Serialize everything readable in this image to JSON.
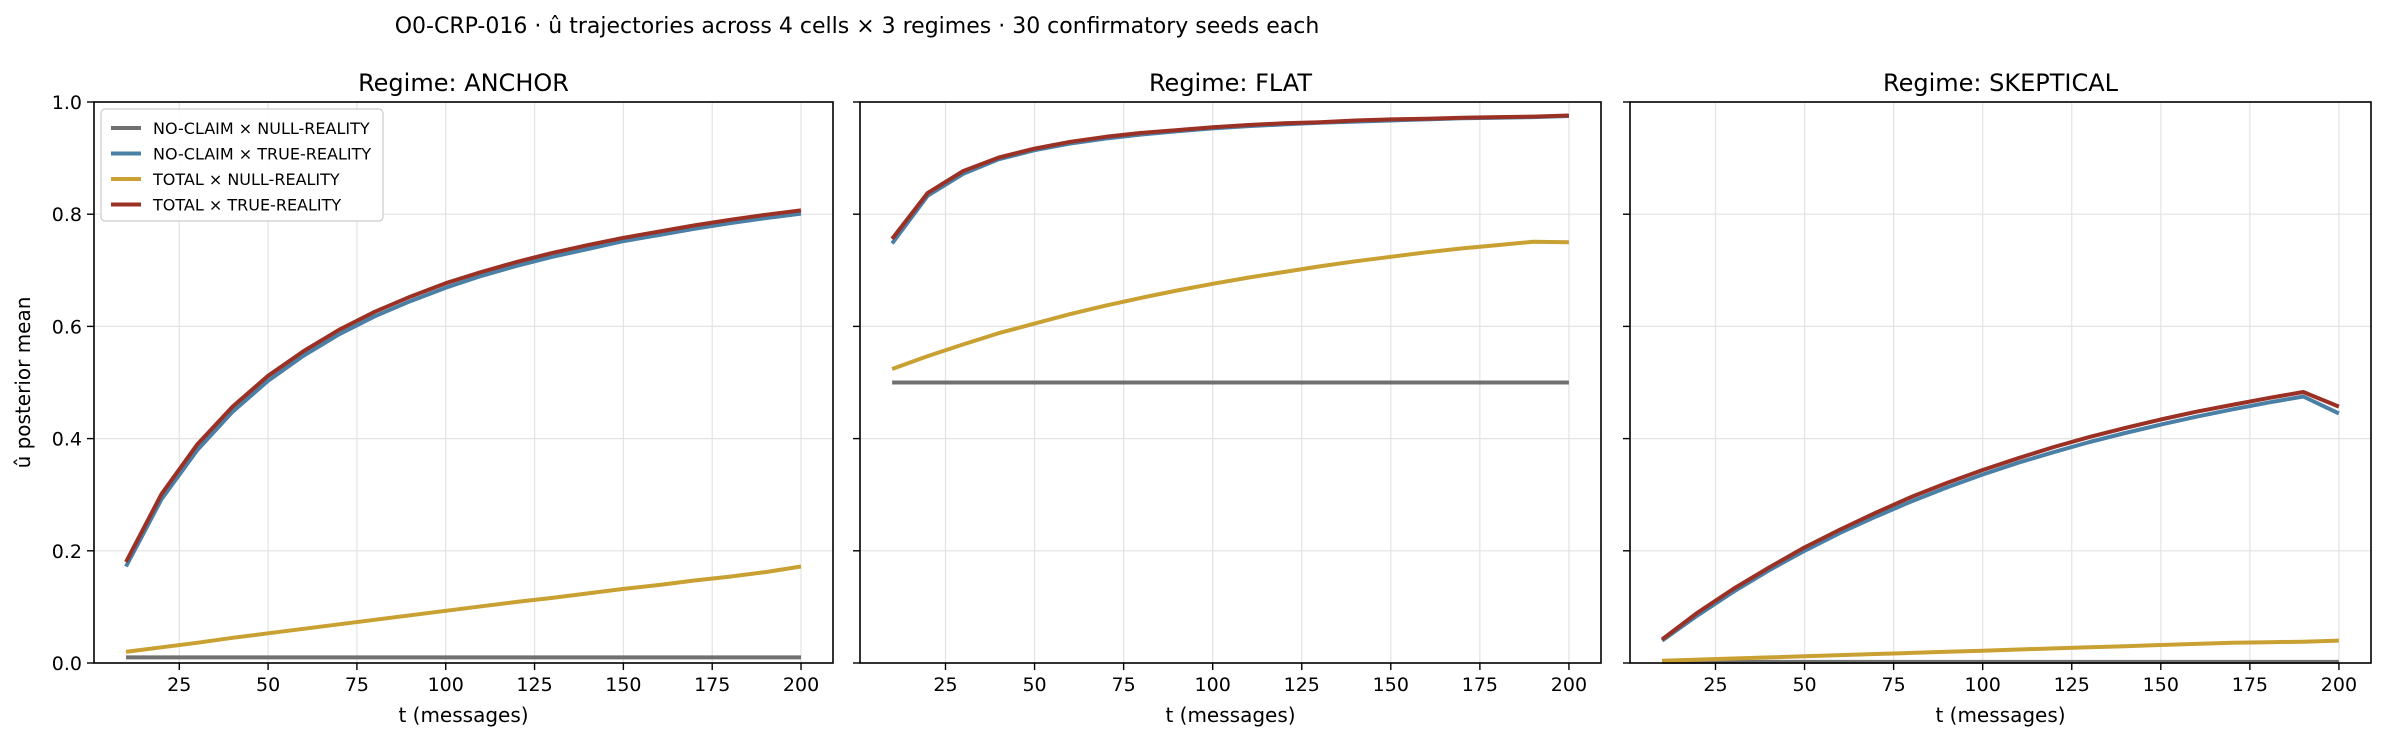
{
  "figure": {
    "suptitle": "O0-CRP-016 · û trajectories across 4 cells × 3 regimes · 30 confirmatory seeds each"
  },
  "series_styles": [
    {
      "name": "NO-CLAIM × NULL-REALITY",
      "color": "#707070"
    },
    {
      "name": "NO-CLAIM × TRUE-REALITY",
      "color": "#4a7fa6"
    },
    {
      "name": "TOTAL × NULL-REALITY",
      "color": "#c9a032"
    },
    {
      "name": "TOTAL × TRUE-REALITY",
      "color": "#9b3125"
    }
  ],
  "chart_data": [
    {
      "type": "line",
      "title": "Regime: ANCHOR",
      "xlabel": "t (messages)",
      "ylabel": "û posterior mean",
      "xlim": [
        1,
        209
      ],
      "ylim": [
        0,
        1
      ],
      "xticks": [
        25,
        50,
        75,
        100,
        125,
        150,
        175,
        200
      ],
      "yticks": [
        0.0,
        0.2,
        0.4,
        0.6,
        0.8,
        1.0
      ],
      "grid": true,
      "legend": "upper-left",
      "x": [
        10,
        20,
        30,
        40,
        50,
        60,
        70,
        80,
        90,
        100,
        110,
        120,
        130,
        140,
        150,
        160,
        170,
        180,
        190,
        200
      ],
      "series": [
        {
          "name": "NO-CLAIM × NULL-REALITY",
          "values": [
            0.01,
            0.01,
            0.01,
            0.01,
            0.01,
            0.01,
            0.01,
            0.01,
            0.01,
            0.01,
            0.01,
            0.01,
            0.01,
            0.01,
            0.01,
            0.01,
            0.01,
            0.01,
            0.01,
            0.01
          ]
        },
        {
          "name": "NO-CLAIM × TRUE-REALITY",
          "values": [
            0.172,
            0.292,
            0.379,
            0.448,
            0.503,
            0.548,
            0.586,
            0.618,
            0.645,
            0.669,
            0.69,
            0.708,
            0.724,
            0.738,
            0.752,
            0.763,
            0.774,
            0.784,
            0.793,
            0.801
          ]
        },
        {
          "name": "TOTAL × NULL-REALITY",
          "values": [
            0.02,
            0.028,
            0.036,
            0.045,
            0.053,
            0.061,
            0.069,
            0.077,
            0.085,
            0.093,
            0.101,
            0.109,
            0.116,
            0.124,
            0.132,
            0.139,
            0.147,
            0.154,
            0.162,
            0.172
          ]
        },
        {
          "name": "TOTAL × TRUE-REALITY",
          "values": [
            0.18,
            0.301,
            0.389,
            0.457,
            0.512,
            0.556,
            0.594,
            0.626,
            0.653,
            0.677,
            0.697,
            0.715,
            0.731,
            0.745,
            0.758,
            0.769,
            0.78,
            0.79,
            0.799,
            0.807
          ]
        }
      ]
    },
    {
      "type": "line",
      "title": "Regime: FLAT",
      "xlabel": "t (messages)",
      "ylabel": "",
      "xlim": [
        1,
        209
      ],
      "ylim": [
        0,
        1
      ],
      "xticks": [
        25,
        50,
        75,
        100,
        125,
        150,
        175,
        200
      ],
      "yticks": [
        0.0,
        0.2,
        0.4,
        0.6,
        0.8,
        1.0
      ],
      "grid": true,
      "legend": "",
      "x": [
        10,
        20,
        30,
        40,
        50,
        60,
        70,
        80,
        90,
        100,
        110,
        120,
        130,
        140,
        150,
        160,
        170,
        180,
        190,
        200
      ],
      "series": [
        {
          "name": "NO-CLAIM × NULL-REALITY",
          "values": [
            0.5,
            0.5,
            0.5,
            0.5,
            0.5,
            0.5,
            0.5,
            0.5,
            0.5,
            0.5,
            0.5,
            0.5,
            0.5,
            0.5,
            0.5,
            0.5,
            0.5,
            0.5,
            0.5,
            0.5
          ]
        },
        {
          "name": "NO-CLAIM × TRUE-REALITY",
          "values": [
            0.748,
            0.833,
            0.872,
            0.898,
            0.914,
            0.926,
            0.935,
            0.942,
            0.948,
            0.953,
            0.957,
            0.96,
            0.963,
            0.965,
            0.967,
            0.969,
            0.971,
            0.972,
            0.973,
            0.975
          ]
        },
        {
          "name": "TOTAL × NULL-REALITY",
          "values": [
            0.524,
            0.547,
            0.568,
            0.588,
            0.605,
            0.622,
            0.637,
            0.651,
            0.664,
            0.676,
            0.687,
            0.697,
            0.707,
            0.716,
            0.724,
            0.732,
            0.739,
            0.745,
            0.751,
            0.75
          ]
        },
        {
          "name": "TOTAL × TRUE-REALITY",
          "values": [
            0.756,
            0.838,
            0.877,
            0.901,
            0.917,
            0.929,
            0.938,
            0.945,
            0.95,
            0.955,
            0.959,
            0.962,
            0.964,
            0.967,
            0.969,
            0.97,
            0.972,
            0.973,
            0.974,
            0.976
          ]
        }
      ]
    },
    {
      "type": "line",
      "title": "Regime: SKEPTICAL",
      "xlabel": "t (messages)",
      "ylabel": "",
      "xlim": [
        1,
        209
      ],
      "ylim": [
        0,
        1
      ],
      "xticks": [
        25,
        50,
        75,
        100,
        125,
        150,
        175,
        200
      ],
      "yticks": [
        0.0,
        0.2,
        0.4,
        0.6,
        0.8,
        1.0
      ],
      "grid": true,
      "legend": "",
      "x": [
        10,
        20,
        30,
        40,
        50,
        60,
        70,
        80,
        90,
        100,
        110,
        120,
        130,
        140,
        150,
        160,
        170,
        180,
        190,
        200
      ],
      "series": [
        {
          "name": "NO-CLAIM × NULL-REALITY",
          "values": [
            0.002,
            0.002,
            0.002,
            0.002,
            0.002,
            0.002,
            0.002,
            0.002,
            0.002,
            0.002,
            0.002,
            0.002,
            0.002,
            0.002,
            0.002,
            0.002,
            0.002,
            0.002,
            0.002,
            0.002
          ]
        },
        {
          "name": "NO-CLAIM × TRUE-REALITY",
          "values": [
            0.04,
            0.085,
            0.127,
            0.165,
            0.2,
            0.232,
            0.261,
            0.288,
            0.313,
            0.336,
            0.357,
            0.376,
            0.394,
            0.41,
            0.425,
            0.439,
            0.452,
            0.464,
            0.475,
            0.445
          ]
        },
        {
          "name": "TOTAL × NULL-REALITY",
          "values": [
            0.004,
            0.006,
            0.008,
            0.01,
            0.012,
            0.014,
            0.016,
            0.018,
            0.02,
            0.022,
            0.024,
            0.026,
            0.028,
            0.03,
            0.032,
            0.034,
            0.036,
            0.037,
            0.038,
            0.04
          ]
        },
        {
          "name": "TOTAL × TRUE-REALITY",
          "values": [
            0.042,
            0.09,
            0.132,
            0.17,
            0.206,
            0.238,
            0.268,
            0.296,
            0.321,
            0.344,
            0.365,
            0.385,
            0.403,
            0.419,
            0.434,
            0.448,
            0.46,
            0.472,
            0.483,
            0.457
          ]
        }
      ]
    }
  ]
}
